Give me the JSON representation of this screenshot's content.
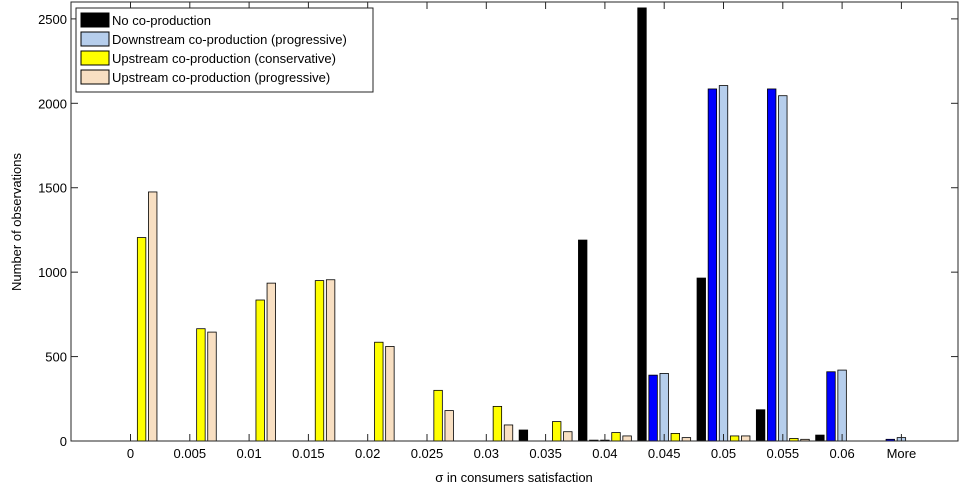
{
  "chart_data": {
    "type": "bar",
    "xlabel": "σ in consumers satisfaction",
    "ylabel": "Number of observations",
    "ylim": [
      0,
      2600
    ],
    "yticks": [
      0,
      500,
      1000,
      1500,
      2000,
      2500
    ],
    "grid": false,
    "legend_position": "top-left",
    "categories": [
      "0",
      "0.005",
      "0.01",
      "0.015",
      "0.02",
      "0.025",
      "0.03",
      "0.035",
      "0.04",
      "0.045",
      "0.05",
      "0.055",
      "0.06",
      "More"
    ],
    "series": [
      {
        "name": "No co-production",
        "color": "#000000",
        "values": [
          0,
          0,
          0,
          0,
          0,
          0,
          0,
          65,
          1190,
          2565,
          965,
          185,
          35,
          0
        ]
      },
      {
        "name": "",
        "color": "#0000ff",
        "values": [
          0,
          0,
          0,
          0,
          0,
          0,
          0,
          0,
          5,
          390,
          2085,
          2085,
          410,
          10
        ]
      },
      {
        "name": "Downstream co-production (progressive)",
        "color": "#b6ceec",
        "values": [
          0,
          0,
          0,
          0,
          0,
          0,
          0,
          0,
          5,
          400,
          2105,
          2045,
          420,
          20
        ]
      },
      {
        "name": "Upstream co-production (conservative)",
        "color": "#ffff00",
        "values": [
          1205,
          665,
          835,
          950,
          585,
          300,
          205,
          115,
          50,
          45,
          30,
          15,
          0,
          0
        ]
      },
      {
        "name": "Upstream co-production (progressive)",
        "color": "#f8dfc2",
        "values": [
          1475,
          645,
          935,
          955,
          560,
          180,
          95,
          55,
          30,
          20,
          30,
          10,
          0,
          0
        ]
      }
    ]
  }
}
